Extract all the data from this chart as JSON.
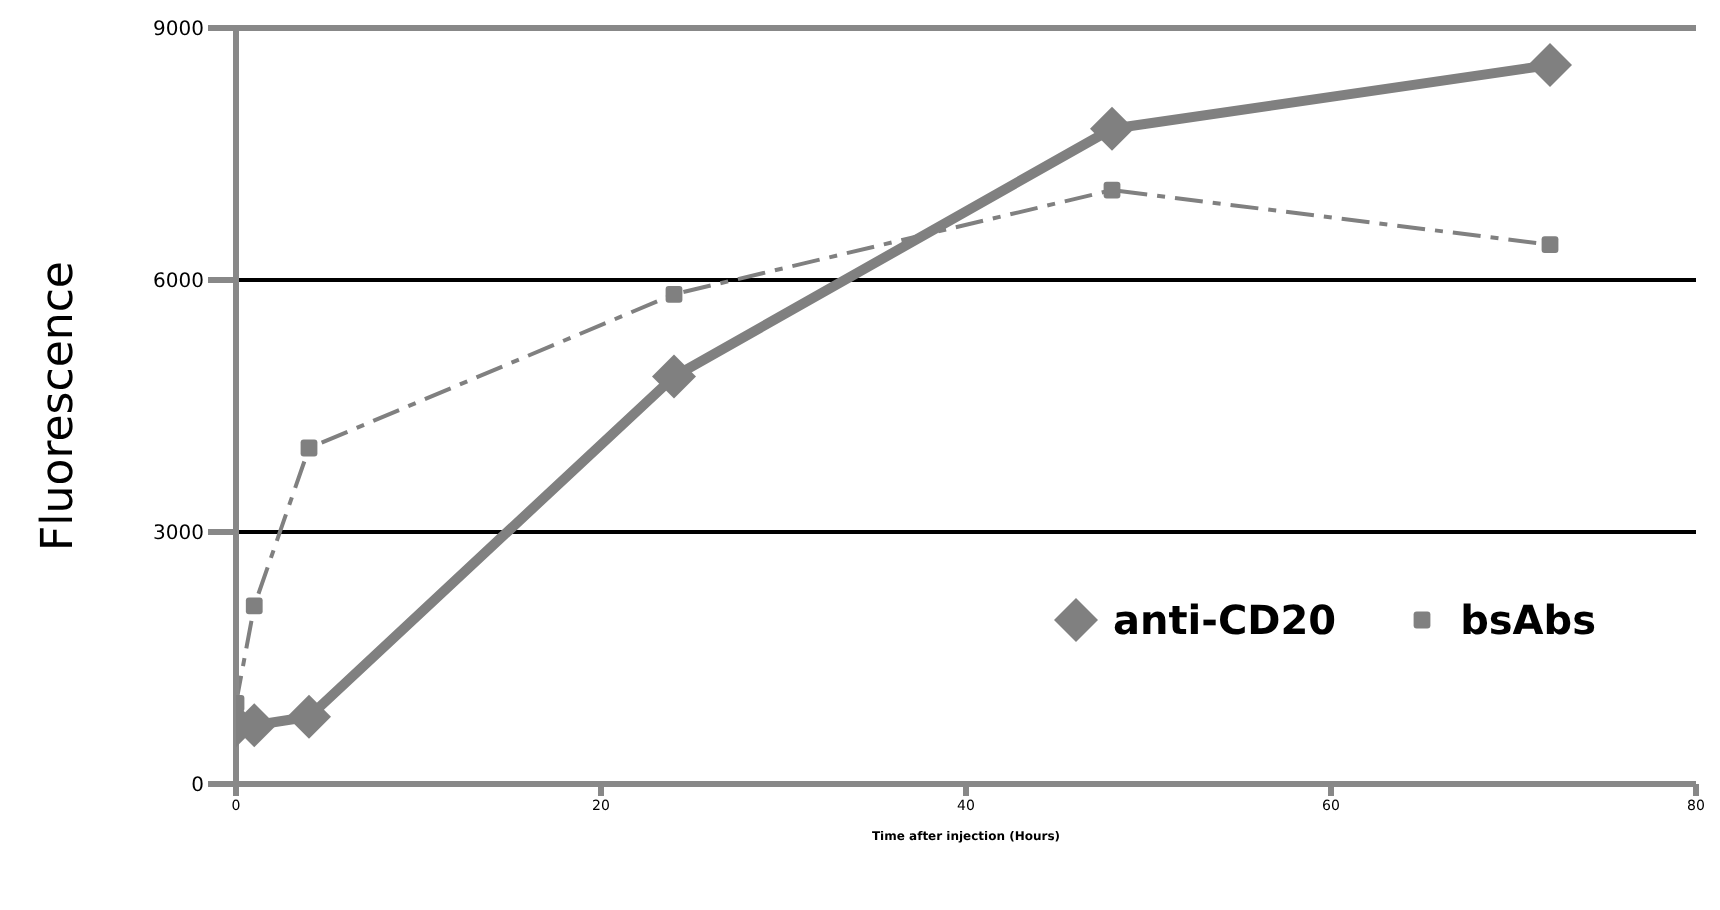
{
  "chart_data": {
    "type": "line",
    "xlabel": "Time after injection (Hours)",
    "ylabel": "Fluorescence",
    "xlim": [
      0,
      80
    ],
    "xticks": [
      0,
      20,
      40,
      60,
      80
    ],
    "ylim": [
      0,
      9000
    ],
    "yticks": [
      0,
      3000,
      6000,
      9000
    ],
    "grid": "y",
    "legend": "bottom right",
    "series": [
      {
        "name": "anti-CD20",
        "color": "#808080",
        "x": [
          0,
          1,
          4,
          24,
          48,
          72
        ],
        "values": [
          700,
          700,
          800,
          4850,
          7800,
          8560
        ],
        "marker": "diamond",
        "line_style": "solid"
      },
      {
        "name": "bsAbs",
        "color": "#808080",
        "x": [
          0,
          1,
          4,
          24,
          48,
          72
        ],
        "values": [
          960,
          2120,
          4000,
          5830,
          7070,
          6420
        ],
        "marker": "square",
        "line_style": "dashed"
      }
    ]
  }
}
